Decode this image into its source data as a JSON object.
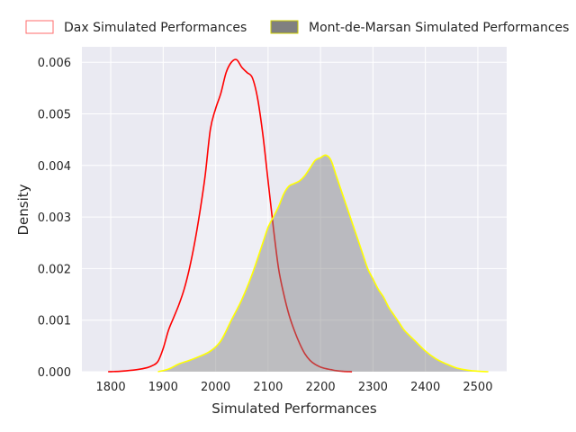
{
  "chart_data": {
    "type": "area",
    "title": "",
    "xlabel": "Simulated Performances",
    "ylabel": "Density",
    "xlim": [
      1745,
      2555
    ],
    "ylim": [
      0,
      0.0063
    ],
    "x_ticks": [
      1800,
      1900,
      2000,
      2100,
      2200,
      2300,
      2400,
      2500
    ],
    "y_ticks": [
      0.0,
      0.001,
      0.002,
      0.003,
      0.004,
      0.005,
      0.006
    ],
    "y_tick_labels": [
      "0.000",
      "0.001",
      "0.002",
      "0.003",
      "0.004",
      "0.005",
      "0.006"
    ],
    "grid": true,
    "legend_position": "top-center, above plot",
    "series": [
      {
        "name": "Dax Simulated Performances",
        "line_color": "#ff0000",
        "fill_color": "#ffffff",
        "fill_opacity": 0.25,
        "x": [
          1795,
          1820,
          1850,
          1870,
          1880,
          1890,
          1900,
          1910,
          1920,
          1930,
          1940,
          1950,
          1960,
          1970,
          1980,
          1990,
          2000,
          2010,
          2020,
          2030,
          2040,
          2050,
          2060,
          2070,
          2080,
          2090,
          2100,
          2110,
          2120,
          2130,
          2140,
          2150,
          2160,
          2170,
          2180,
          2190,
          2200,
          2210,
          2220,
          2230,
          2240,
          2260
        ],
        "y": [
          0.0,
          1e-05,
          4e-05,
          8e-05,
          0.00012,
          0.0002,
          0.00045,
          0.0008,
          0.00105,
          0.0013,
          0.0016,
          0.002,
          0.0025,
          0.0031,
          0.0038,
          0.0047,
          0.0051,
          0.0054,
          0.0058,
          0.006,
          0.00605,
          0.0059,
          0.0058,
          0.0057,
          0.0053,
          0.0046,
          0.0037,
          0.0028,
          0.002,
          0.0015,
          0.0011,
          0.0008,
          0.00055,
          0.00035,
          0.00022,
          0.00014,
          9e-05,
          6e-05,
          4e-05,
          2e-05,
          1e-05,
          0.0
        ]
      },
      {
        "name": "Mont-de-Marsan Simulated Performances",
        "line_color": "#ffff00",
        "fill_color": "#808080",
        "fill_opacity": 0.45,
        "x": [
          1890,
          1910,
          1930,
          1950,
          1970,
          1990,
          2010,
          2030,
          2050,
          2070,
          2090,
          2100,
          2110,
          2120,
          2130,
          2140,
          2150,
          2160,
          2170,
          2180,
          2190,
          2200,
          2210,
          2220,
          2230,
          2240,
          2250,
          2260,
          2270,
          2280,
          2290,
          2300,
          2310,
          2320,
          2330,
          2340,
          2350,
          2360,
          2380,
          2400,
          2420,
          2440,
          2460,
          2480,
          2500,
          2520
        ],
        "y": [
          0.0,
          5e-05,
          0.00015,
          0.00022,
          0.0003,
          0.0004,
          0.0006,
          0.001,
          0.0014,
          0.0019,
          0.0025,
          0.0028,
          0.003,
          0.0032,
          0.00345,
          0.0036,
          0.00365,
          0.0037,
          0.0038,
          0.00395,
          0.0041,
          0.00415,
          0.0042,
          0.0041,
          0.0038,
          0.0035,
          0.0032,
          0.0029,
          0.0026,
          0.0023,
          0.002,
          0.0018,
          0.0016,
          0.00145,
          0.00125,
          0.0011,
          0.00095,
          0.0008,
          0.0006,
          0.0004,
          0.00025,
          0.00015,
          7e-05,
          3e-05,
          1e-05,
          0.0
        ]
      }
    ]
  }
}
